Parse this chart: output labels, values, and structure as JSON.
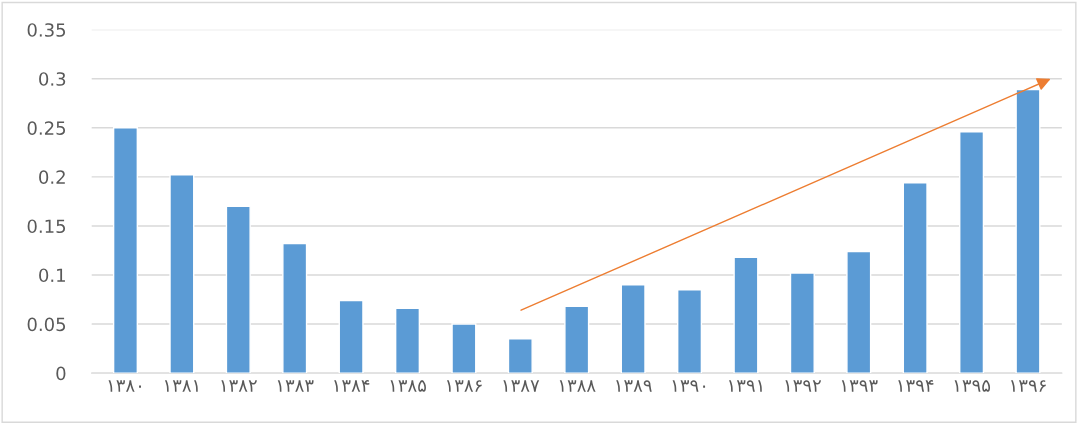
{
  "chart_data": {
    "type": "bar",
    "categories": [
      "۱۳۸۰",
      "۱۳۸۱",
      "۱۳۸۲",
      "۱۳۸۳",
      "۱۳۸۴",
      "۱۳۸۵",
      "۱۳۸۶",
      "۱۳۸۷",
      "۱۳۸۸",
      "۱۳۸۹",
      "۱۳۹۰",
      "۱۳۹۱",
      "۱۳۹۲",
      "۱۳۹۳",
      "۱۳۹۴",
      "۱۳۹۵",
      "۱۳۹۶"
    ],
    "values": [
      0.25,
      0.202,
      0.17,
      0.132,
      0.074,
      0.066,
      0.05,
      0.035,
      0.068,
      0.09,
      0.085,
      0.118,
      0.102,
      0.124,
      0.194,
      0.246,
      0.289
    ],
    "color": "#5b9bd5",
    "ylim": [
      0,
      0.35
    ],
    "yticks": [
      0,
      0.05,
      0.1,
      0.15,
      0.2,
      0.25,
      0.3,
      0.35
    ],
    "grid": "y"
  }
}
